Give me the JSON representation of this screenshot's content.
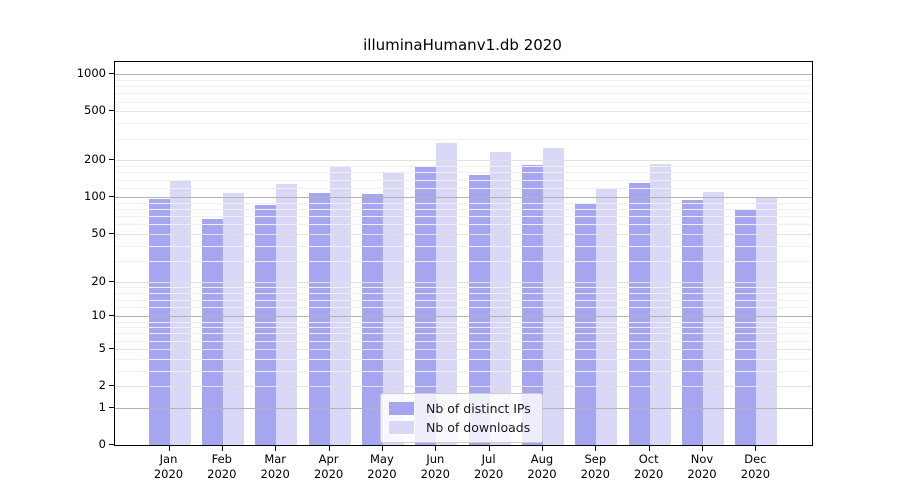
{
  "title": "illuminaHumanv1.db 2020",
  "chart_data": {
    "type": "bar",
    "title": "illuminaHumanv1.db 2020",
    "categories": [
      "Jan",
      "Feb",
      "Mar",
      "Apr",
      "May",
      "Jun",
      "Jul",
      "Aug",
      "Sep",
      "Oct",
      "Nov",
      "Dec"
    ],
    "year": "2020",
    "series": [
      {
        "name": "Nb of distinct IPs",
        "color": "#a5a5f0",
        "values": [
          97,
          67,
          87,
          109,
          106,
          180,
          152,
          183,
          88,
          132,
          95,
          79
        ]
      },
      {
        "name": "Nb of downloads",
        "color": "#d9d9f7",
        "values": [
          137,
          108,
          128,
          182,
          158,
          280,
          236,
          253,
          118,
          187,
          111,
          99
        ]
      }
    ],
    "yscale": "log1p",
    "ylim": [
      0,
      1000
    ],
    "yticks": [
      0,
      1,
      2,
      5,
      10,
      20,
      50,
      100,
      200,
      500,
      1000
    ],
    "grid": true,
    "legend_position": "lower center"
  },
  "colors": {
    "axis": "#000000",
    "grid_major": "#b3b3b3",
    "grid_mid": "#e2e2e2",
    "grid_minor": "#f0f0f0",
    "legend_border": "#cccccc"
  }
}
